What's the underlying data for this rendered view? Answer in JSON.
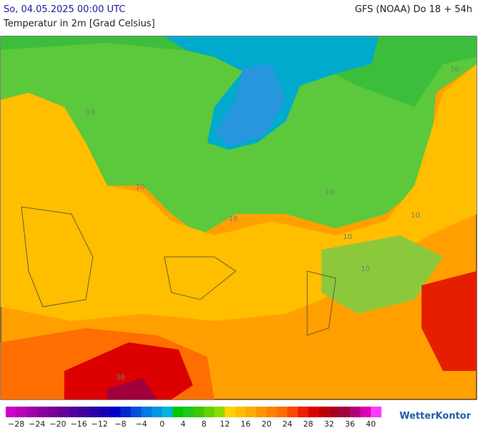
{
  "header": {
    "date": "So, 04.05.2025 00:00 UTC",
    "model": "GFS (NOAA) Do 18 + 54h",
    "subtitle": "Temperatur in 2m [Grad Celsius]"
  },
  "map": {
    "contour_labels": [
      "10",
      "10",
      "10",
      "10",
      "10",
      "10",
      "10",
      "10",
      "30"
    ]
  },
  "legend": {
    "labels": [
      "−28",
      "−24",
      "−20",
      "−16",
      "−12",
      "−8",
      "−4",
      "0",
      "4",
      "8",
      "12",
      "16",
      "20",
      "24",
      "28",
      "32",
      "36",
      "40"
    ],
    "colors": [
      "#cc00cc",
      "#b800b8",
      "#a000aa",
      "#8c00a0",
      "#780096",
      "#640096",
      "#50009b",
      "#3c00a0",
      "#2800aa",
      "#1400b4",
      "#0000c8",
      "#0028d2",
      "#0050dc",
      "#0078e6",
      "#0096e6",
      "#00b4dc",
      "#00c800",
      "#1ec81e",
      "#3cc800",
      "#64d200",
      "#8cdc00",
      "#ffd200",
      "#ffbe00",
      "#ffaa00",
      "#ff9600",
      "#ff8200",
      "#ff6e00",
      "#ff4600",
      "#f01e00",
      "#dc0000",
      "#c00000",
      "#a8001e",
      "#a0003c",
      "#b40078",
      "#dc00b4",
      "#ff3cff"
    ]
  },
  "logo": "WetterKontor"
}
